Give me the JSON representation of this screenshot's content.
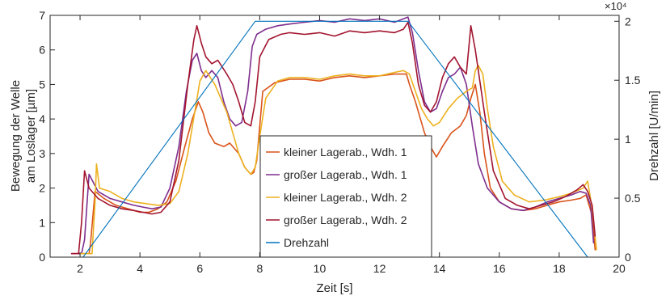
{
  "chart_data": {
    "type": "line",
    "xlabel": "Zeit [s]",
    "ylabel_left": [
      "Bewegung der Welle",
      "am Loslager [µm]"
    ],
    "ylabel_right": "Drehzahl [U/min]",
    "right_exponent": "×10⁴",
    "xlim": [
      1,
      20
    ],
    "ylim_left": [
      0,
      7
    ],
    "ylim_right": [
      0,
      2.05
    ],
    "x_ticks": [
      2,
      4,
      6,
      8,
      10,
      12,
      14,
      16,
      18,
      20
    ],
    "y_ticks_left": [
      0,
      1,
      2,
      3,
      4,
      5,
      6,
      7
    ],
    "y_ticks_right": [
      0,
      0.5,
      1,
      1.5,
      2
    ],
    "y_tick_labels_right": [
      "0",
      "0.5",
      "1",
      "1.5",
      "2"
    ],
    "legend_position": "center",
    "series": [
      {
        "name": "kleiner Lagerab., Wdh. 1",
        "color": "#D95319",
        "axis": "left",
        "x": [
          1.75,
          2.3,
          2.35,
          2.5,
          2.8,
          3.2,
          3.6,
          4.0,
          4.3,
          4.6,
          4.9,
          5.2,
          5.5,
          5.75,
          5.95,
          6.1,
          6.3,
          6.5,
          6.8,
          7.0,
          7.3,
          7.5,
          7.7,
          7.8,
          7.9,
          8.1,
          8.5,
          9.0,
          9.5,
          10.0,
          10.5,
          11.0,
          11.5,
          12.0,
          12.5,
          12.9,
          13.0,
          13.2,
          13.5,
          13.7,
          13.9,
          14.1,
          14.4,
          14.7,
          14.9,
          15.05,
          15.2,
          15.35,
          15.5,
          15.7,
          16.0,
          16.4,
          16.8,
          17.2,
          17.6,
          18.0,
          18.4,
          18.7,
          18.9,
          19.1,
          19.2
        ],
        "y": [
          0.1,
          0.1,
          0.4,
          1.9,
          1.7,
          1.5,
          1.4,
          1.3,
          1.3,
          1.4,
          1.6,
          2.2,
          3.2,
          4.0,
          4.5,
          4.2,
          3.6,
          3.3,
          3.2,
          3.3,
          3.0,
          2.6,
          2.4,
          2.45,
          2.8,
          4.8,
          5.05,
          5.15,
          5.15,
          5.1,
          5.2,
          5.25,
          5.2,
          5.25,
          5.3,
          5.3,
          5.0,
          4.5,
          3.6,
          3.2,
          2.9,
          3.2,
          3.6,
          3.8,
          4.1,
          4.6,
          5.0,
          4.2,
          3.0,
          2.0,
          1.6,
          1.4,
          1.35,
          1.4,
          1.5,
          1.6,
          1.65,
          1.7,
          1.8,
          1.2,
          0.2
        ]
      },
      {
        "name": "großer Lagerab., Wdh. 1",
        "color": "#7E2F8E",
        "axis": "left",
        "x": [
          1.7,
          2.05,
          2.15,
          2.3,
          2.6,
          3.0,
          3.4,
          3.8,
          4.1,
          4.4,
          4.7,
          5.0,
          5.3,
          5.55,
          5.75,
          5.9,
          6.05,
          6.2,
          6.4,
          6.6,
          6.8,
          7.0,
          7.2,
          7.4,
          7.6,
          7.75,
          7.9,
          8.2,
          8.6,
          9.0,
          9.5,
          10.0,
          10.5,
          11.0,
          11.5,
          12.0,
          12.5,
          12.8,
          12.95,
          13.1,
          13.3,
          13.5,
          13.7,
          13.9,
          14.1,
          14.3,
          14.5,
          14.7,
          14.9,
          15.1,
          15.3,
          15.6,
          16.0,
          16.4,
          16.8,
          17.2,
          17.6,
          18.0,
          18.4,
          18.7,
          18.9,
          19.05,
          19.15
        ],
        "y": [
          0.1,
          0.1,
          0.5,
          2.4,
          1.9,
          1.7,
          1.6,
          1.5,
          1.45,
          1.4,
          1.45,
          2.0,
          3.2,
          4.8,
          5.7,
          5.9,
          5.4,
          5.2,
          5.4,
          5.2,
          4.5,
          4.0,
          3.8,
          3.9,
          4.8,
          6.1,
          6.45,
          6.6,
          6.7,
          6.75,
          6.8,
          6.85,
          6.8,
          6.9,
          6.85,
          6.9,
          6.8,
          6.9,
          6.95,
          6.5,
          5.4,
          4.5,
          4.2,
          4.3,
          4.8,
          5.2,
          5.3,
          5.5,
          5.0,
          3.8,
          2.7,
          2.0,
          1.6,
          1.4,
          1.35,
          1.45,
          1.6,
          1.7,
          1.8,
          1.9,
          1.85,
          1.5,
          0.4
        ]
      },
      {
        "name": "kleiner Lagerab., Wdh. 2",
        "color": "#EDB120",
        "axis": "left",
        "x": [
          2.0,
          2.4,
          2.5,
          2.55,
          2.65,
          3.0,
          3.4,
          3.8,
          4.2,
          4.6,
          5.0,
          5.3,
          5.6,
          5.85,
          6.0,
          6.2,
          6.5,
          6.7,
          6.9,
          7.1,
          7.3,
          7.5,
          7.7,
          7.85,
          8.0,
          8.2,
          8.6,
          9.0,
          9.5,
          10.0,
          10.5,
          11.0,
          11.5,
          12.0,
          12.5,
          12.8,
          13.0,
          13.2,
          13.4,
          13.6,
          13.8,
          14.0,
          14.3,
          14.6,
          14.9,
          15.1,
          15.2,
          15.3,
          15.45,
          15.6,
          15.8,
          16.1,
          16.5,
          17.0,
          17.5,
          18.0,
          18.4,
          18.8,
          18.95,
          19.1,
          19.25
        ],
        "y": [
          0.1,
          0.1,
          1.6,
          2.7,
          2.0,
          1.9,
          1.7,
          1.6,
          1.55,
          1.5,
          1.55,
          1.9,
          3.0,
          4.3,
          5.1,
          5.4,
          5.0,
          4.6,
          4.2,
          3.6,
          3.0,
          2.6,
          2.4,
          2.6,
          3.5,
          4.6,
          5.1,
          5.2,
          5.2,
          5.15,
          5.25,
          5.3,
          5.25,
          5.25,
          5.35,
          5.4,
          5.3,
          4.8,
          4.3,
          4.0,
          3.8,
          3.9,
          4.3,
          4.6,
          4.8,
          4.9,
          5.4,
          5.55,
          5.3,
          4.3,
          3.2,
          2.2,
          1.8,
          1.6,
          1.65,
          1.75,
          1.85,
          2.0,
          2.2,
          1.4,
          0.2
        ]
      },
      {
        "name": "großer Lagerab., Wdh. 2",
        "color": "#A2142F",
        "axis": "left",
        "x": [
          1.7,
          1.95,
          2.05,
          2.15,
          2.3,
          2.6,
          3.0,
          3.4,
          3.8,
          4.1,
          4.4,
          4.7,
          5.0,
          5.3,
          5.6,
          5.8,
          5.9,
          6.05,
          6.2,
          6.4,
          6.6,
          6.9,
          7.1,
          7.3,
          7.5,
          7.7,
          7.85,
          8.0,
          8.3,
          8.7,
          9.0,
          9.5,
          10.0,
          10.5,
          11.0,
          11.5,
          12.0,
          12.5,
          12.8,
          12.95,
          13.1,
          13.3,
          13.5,
          13.7,
          13.9,
          14.1,
          14.3,
          14.5,
          14.7,
          14.9,
          15.05,
          15.2,
          15.5,
          15.8,
          16.2,
          16.6,
          17.0,
          17.4,
          17.8,
          18.2,
          18.6,
          18.8,
          18.95,
          19.1,
          19.2
        ],
        "y": [
          0.1,
          0.1,
          1.0,
          2.5,
          2.0,
          1.7,
          1.5,
          1.4,
          1.35,
          1.3,
          1.25,
          1.3,
          1.6,
          2.8,
          5.0,
          6.3,
          6.7,
          6.2,
          5.8,
          5.6,
          5.7,
          5.3,
          5.0,
          4.5,
          3.9,
          3.8,
          4.5,
          5.8,
          6.3,
          6.45,
          6.5,
          6.45,
          6.5,
          6.4,
          6.55,
          6.5,
          6.55,
          6.5,
          6.6,
          6.8,
          6.2,
          5.0,
          4.4,
          4.2,
          4.5,
          5.2,
          5.6,
          5.8,
          5.5,
          5.3,
          6.7,
          6.0,
          4.2,
          2.5,
          1.7,
          1.5,
          1.4,
          1.5,
          1.6,
          1.75,
          1.95,
          2.1,
          1.9,
          1.5,
          0.6
        ]
      },
      {
        "name": "Drehzahl",
        "color": "#0072BD",
        "axis": "right",
        "x": [
          1.7,
          2.1,
          7.85,
          12.95,
          18.95
        ],
        "y": [
          0,
          0,
          2.0,
          2.0,
          0
        ]
      }
    ]
  }
}
